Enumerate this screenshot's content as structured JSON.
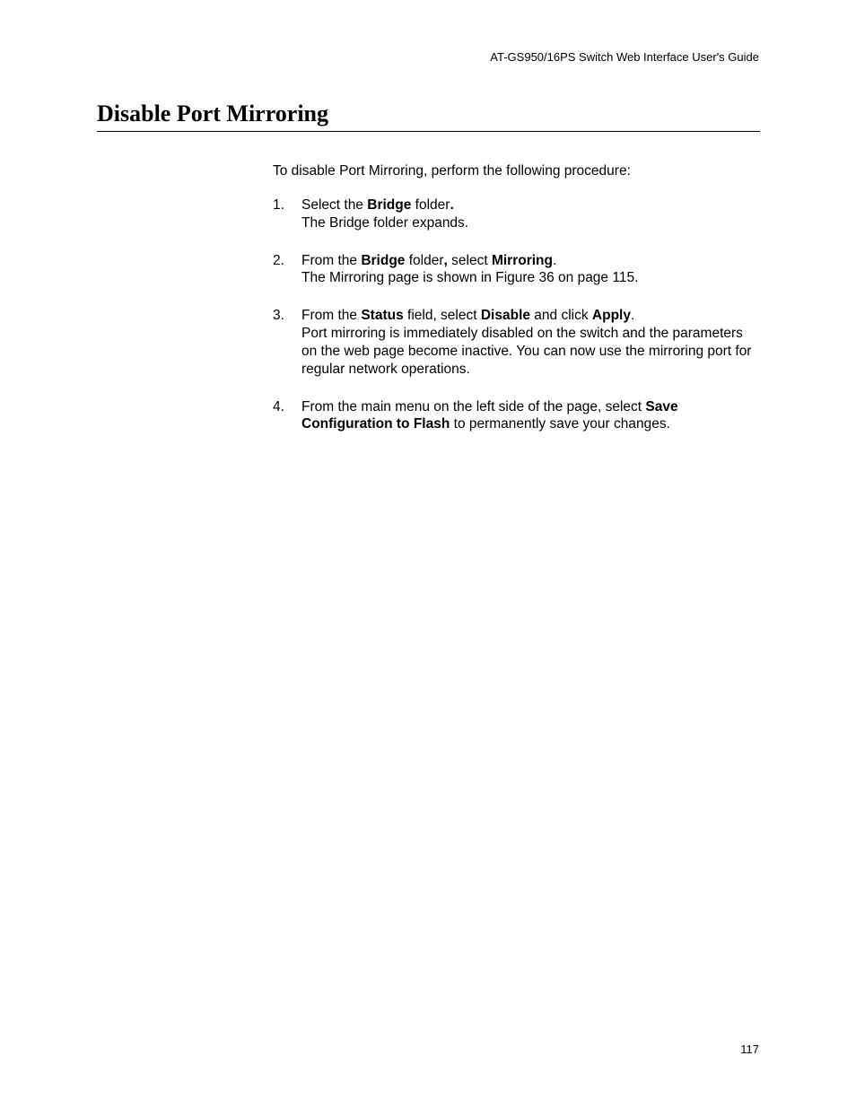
{
  "header": {
    "guide_title": "AT-GS950/16PS Switch Web Interface User's Guide"
  },
  "section": {
    "title": "Disable Port Mirroring"
  },
  "intro": "To disable Port Mirroring, perform the following procedure:",
  "steps": [
    {
      "number": "1.",
      "parts": [
        {
          "text": "Select the ",
          "bold": false
        },
        {
          "text": "Bridge",
          "bold": true
        },
        {
          "text": " folder",
          "bold": false
        },
        {
          "text": ".",
          "bold": true
        }
      ],
      "followup": "The Bridge folder expands."
    },
    {
      "number": "2.",
      "parts": [
        {
          "text": "From the ",
          "bold": false
        },
        {
          "text": "Bridge",
          "bold": true
        },
        {
          "text": " folder",
          "bold": false
        },
        {
          "text": ",",
          "bold": true
        },
        {
          "text": " select ",
          "bold": false
        },
        {
          "text": "Mirroring",
          "bold": true
        },
        {
          "text": ".",
          "bold": false
        }
      ],
      "followup": "The Mirroring page is shown in Figure 36 on page 115."
    },
    {
      "number": "3.",
      "parts": [
        {
          "text": "From the ",
          "bold": false
        },
        {
          "text": "Status",
          "bold": true
        },
        {
          "text": " field, select ",
          "bold": false
        },
        {
          "text": "Disable",
          "bold": true
        },
        {
          "text": " and click ",
          "bold": false
        },
        {
          "text": "Apply",
          "bold": true
        },
        {
          "text": ".",
          "bold": false
        }
      ],
      "followup": "Port mirroring is immediately disabled on the switch and the parameters on the web page become inactive. You can now use the mirroring port for regular network operations."
    },
    {
      "number": "4.",
      "parts": [
        {
          "text": "From the main menu on the left side of the page, select ",
          "bold": false
        },
        {
          "text": "Save Configuration to Flash",
          "bold": true
        },
        {
          "text": " to permanently save your changes.",
          "bold": false
        }
      ],
      "followup": ""
    }
  ],
  "page_number": "117"
}
